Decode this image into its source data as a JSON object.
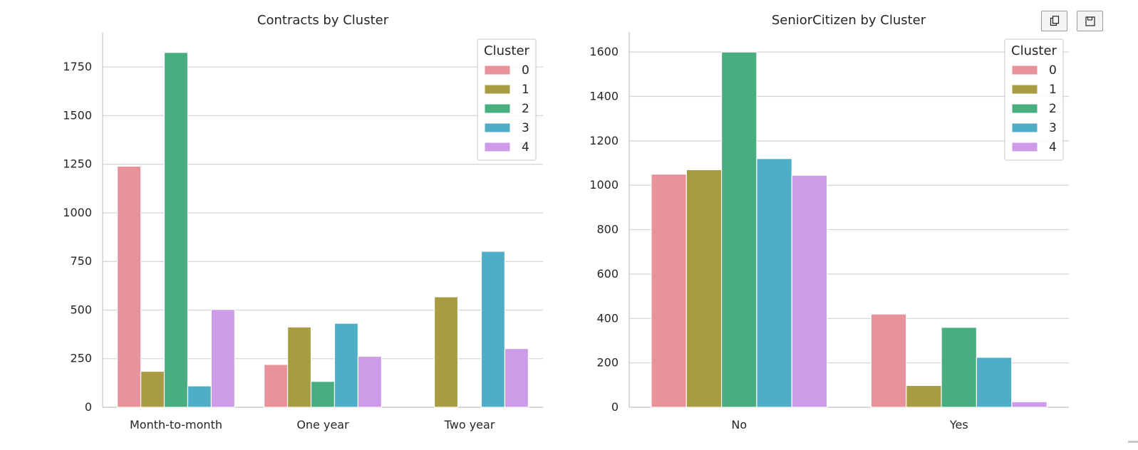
{
  "colors": [
    "#e8929c",
    "#a89c43",
    "#48ae80",
    "#4faec5",
    "#cd9be8"
  ],
  "toolbar": {
    "copy_icon": "copy-icon",
    "save_icon": "floppy-disk-icon"
  },
  "chart_data": [
    {
      "type": "bar",
      "title": "Contracts by Cluster",
      "xlabel": "",
      "ylabel": "",
      "categories": [
        "Month-to-month",
        "One year",
        "Two year"
      ],
      "ylim": [
        0,
        1930
      ],
      "yticks": [
        0,
        250,
        500,
        750,
        1000,
        1250,
        1500,
        1750
      ],
      "grid": "horizontal",
      "legend": {
        "title": "Cluster",
        "placement": "top-right"
      },
      "series": [
        {
          "name": "0",
          "values": [
            1240,
            220,
            0
          ]
        },
        {
          "name": "1",
          "values": [
            185,
            413,
            568
          ]
        },
        {
          "name": "2",
          "values": [
            1825,
            133,
            0
          ]
        },
        {
          "name": "3",
          "values": [
            110,
            432,
            802
          ]
        },
        {
          "name": "4",
          "values": [
            503,
            262,
            302
          ]
        }
      ]
    },
    {
      "type": "bar",
      "title": "SeniorCitizen by Cluster",
      "xlabel": "",
      "ylabel": "",
      "categories": [
        "No",
        "Yes"
      ],
      "ylim": [
        0,
        1690
      ],
      "yticks": [
        0,
        200,
        400,
        600,
        800,
        1000,
        1200,
        1400,
        1600
      ],
      "grid": "horizontal",
      "legend": {
        "title": "Cluster",
        "placement": "top-right"
      },
      "series": [
        {
          "name": "0",
          "values": [
            1050,
            420
          ]
        },
        {
          "name": "1",
          "values": [
            1070,
            98
          ]
        },
        {
          "name": "2",
          "values": [
            1600,
            360
          ]
        },
        {
          "name": "3",
          "values": [
            1120,
            225
          ]
        },
        {
          "name": "4",
          "values": [
            1045,
            25
          ]
        }
      ]
    }
  ]
}
